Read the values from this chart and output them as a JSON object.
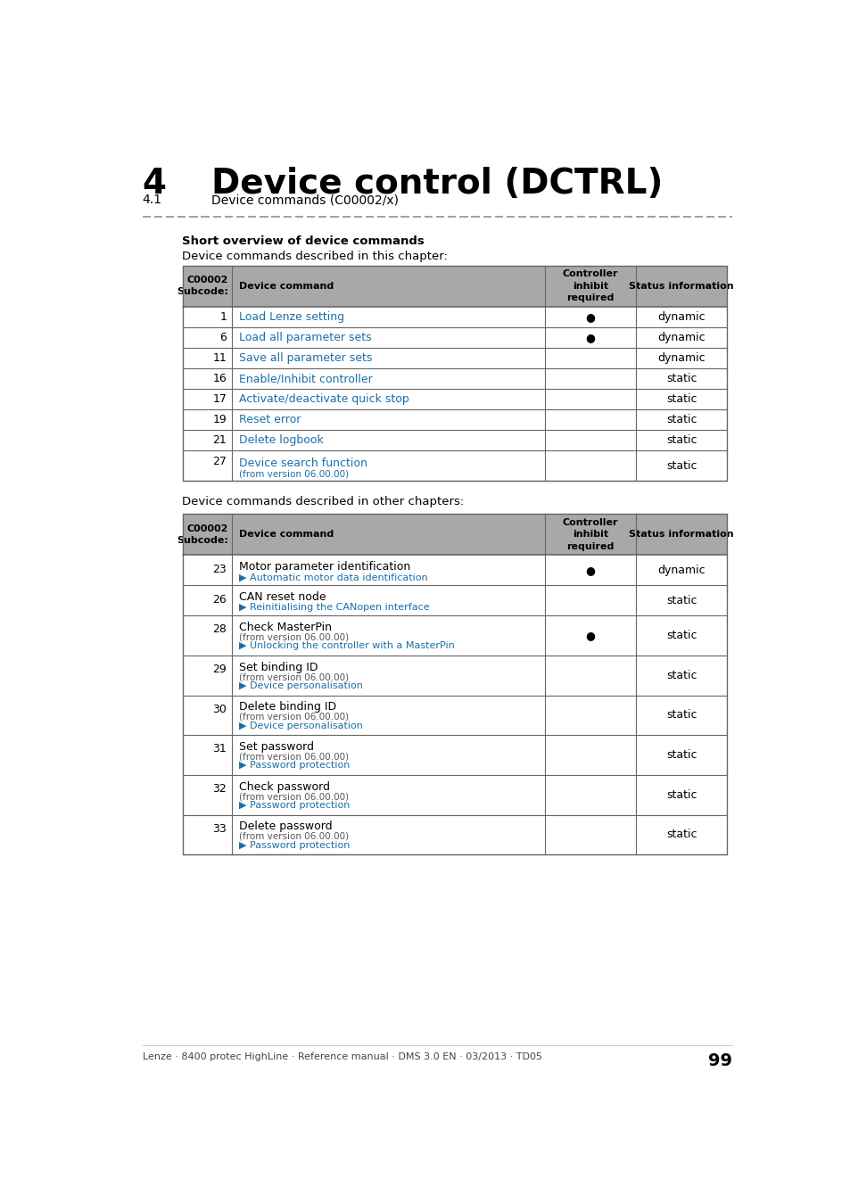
{
  "title_number": "4",
  "title_text": "Device control (DCTRL)",
  "subtitle_num": "4.1",
  "subtitle_text": "Device commands (C00002/x)",
  "section_heading": "Short overview of device commands",
  "table1_intro": "Device commands described in this chapter:",
  "table2_intro": "Device commands described in other chapters:",
  "table1_rows": [
    {
      "code": "1",
      "command": "Load Lenze setting",
      "inhibit": true,
      "status": "dynamic",
      "sub": ""
    },
    {
      "code": "6",
      "command": "Load all parameter sets",
      "inhibit": true,
      "status": "dynamic",
      "sub": ""
    },
    {
      "code": "11",
      "command": "Save all parameter sets",
      "inhibit": false,
      "status": "dynamic",
      "sub": ""
    },
    {
      "code": "16",
      "command": "Enable/Inhibit controller",
      "inhibit": false,
      "status": "static",
      "sub": ""
    },
    {
      "code": "17",
      "command": "Activate/deactivate quick stop",
      "inhibit": false,
      "status": "static",
      "sub": ""
    },
    {
      "code": "19",
      "command": "Reset error",
      "inhibit": false,
      "status": "static",
      "sub": ""
    },
    {
      "code": "21",
      "command": "Delete logbook",
      "inhibit": false,
      "status": "static",
      "sub": ""
    },
    {
      "code": "27",
      "command": "Device search function",
      "inhibit": false,
      "status": "static",
      "sub": "(from version 06.00.00)"
    }
  ],
  "table2_rows": [
    {
      "code": "23",
      "command": "Motor parameter identification",
      "inhibit": true,
      "status": "dynamic",
      "line2": "",
      "line3": "▶ Automatic motor data identification"
    },
    {
      "code": "26",
      "command": "CAN reset node",
      "inhibit": false,
      "status": "static",
      "line2": "",
      "line3": "▶ Reinitialising the CANopen interface"
    },
    {
      "code": "28",
      "command": "Check MasterPin",
      "inhibit": true,
      "status": "static",
      "line2": "(from version 06.00.00)",
      "line3": "▶ Unlocking the controller with a MasterPin"
    },
    {
      "code": "29",
      "command": "Set binding ID",
      "inhibit": false,
      "status": "static",
      "line2": "(from version 06.00.00)",
      "line3": "▶ Device personalisation"
    },
    {
      "code": "30",
      "command": "Delete binding ID",
      "inhibit": false,
      "status": "static",
      "line2": "(from version 06.00.00)",
      "line3": "▶ Device personalisation"
    },
    {
      "code": "31",
      "command": "Set password",
      "inhibit": false,
      "status": "static",
      "line2": "(from version 06.00.00)",
      "line3": "▶ Password protection"
    },
    {
      "code": "32",
      "command": "Check password",
      "inhibit": false,
      "status": "static",
      "line2": "(from version 06.00.00)",
      "line3": "▶ Password protection"
    },
    {
      "code": "33",
      "command": "Delete password",
      "inhibit": false,
      "status": "static",
      "line2": "(from version 06.00.00)",
      "line3": "▶ Password protection"
    }
  ],
  "footer_text": "Lenze · 8400 protec HighLine · Reference manual · DMS 3.0 EN · 03/2013 · TD05",
  "page_number": "99",
  "link_color": "#1a6fa8",
  "header_bg": "#a8a8a8",
  "border_color": "#666666",
  "text_color": "#000000",
  "gray_text": "#555555",
  "dashed_color": "#999999"
}
